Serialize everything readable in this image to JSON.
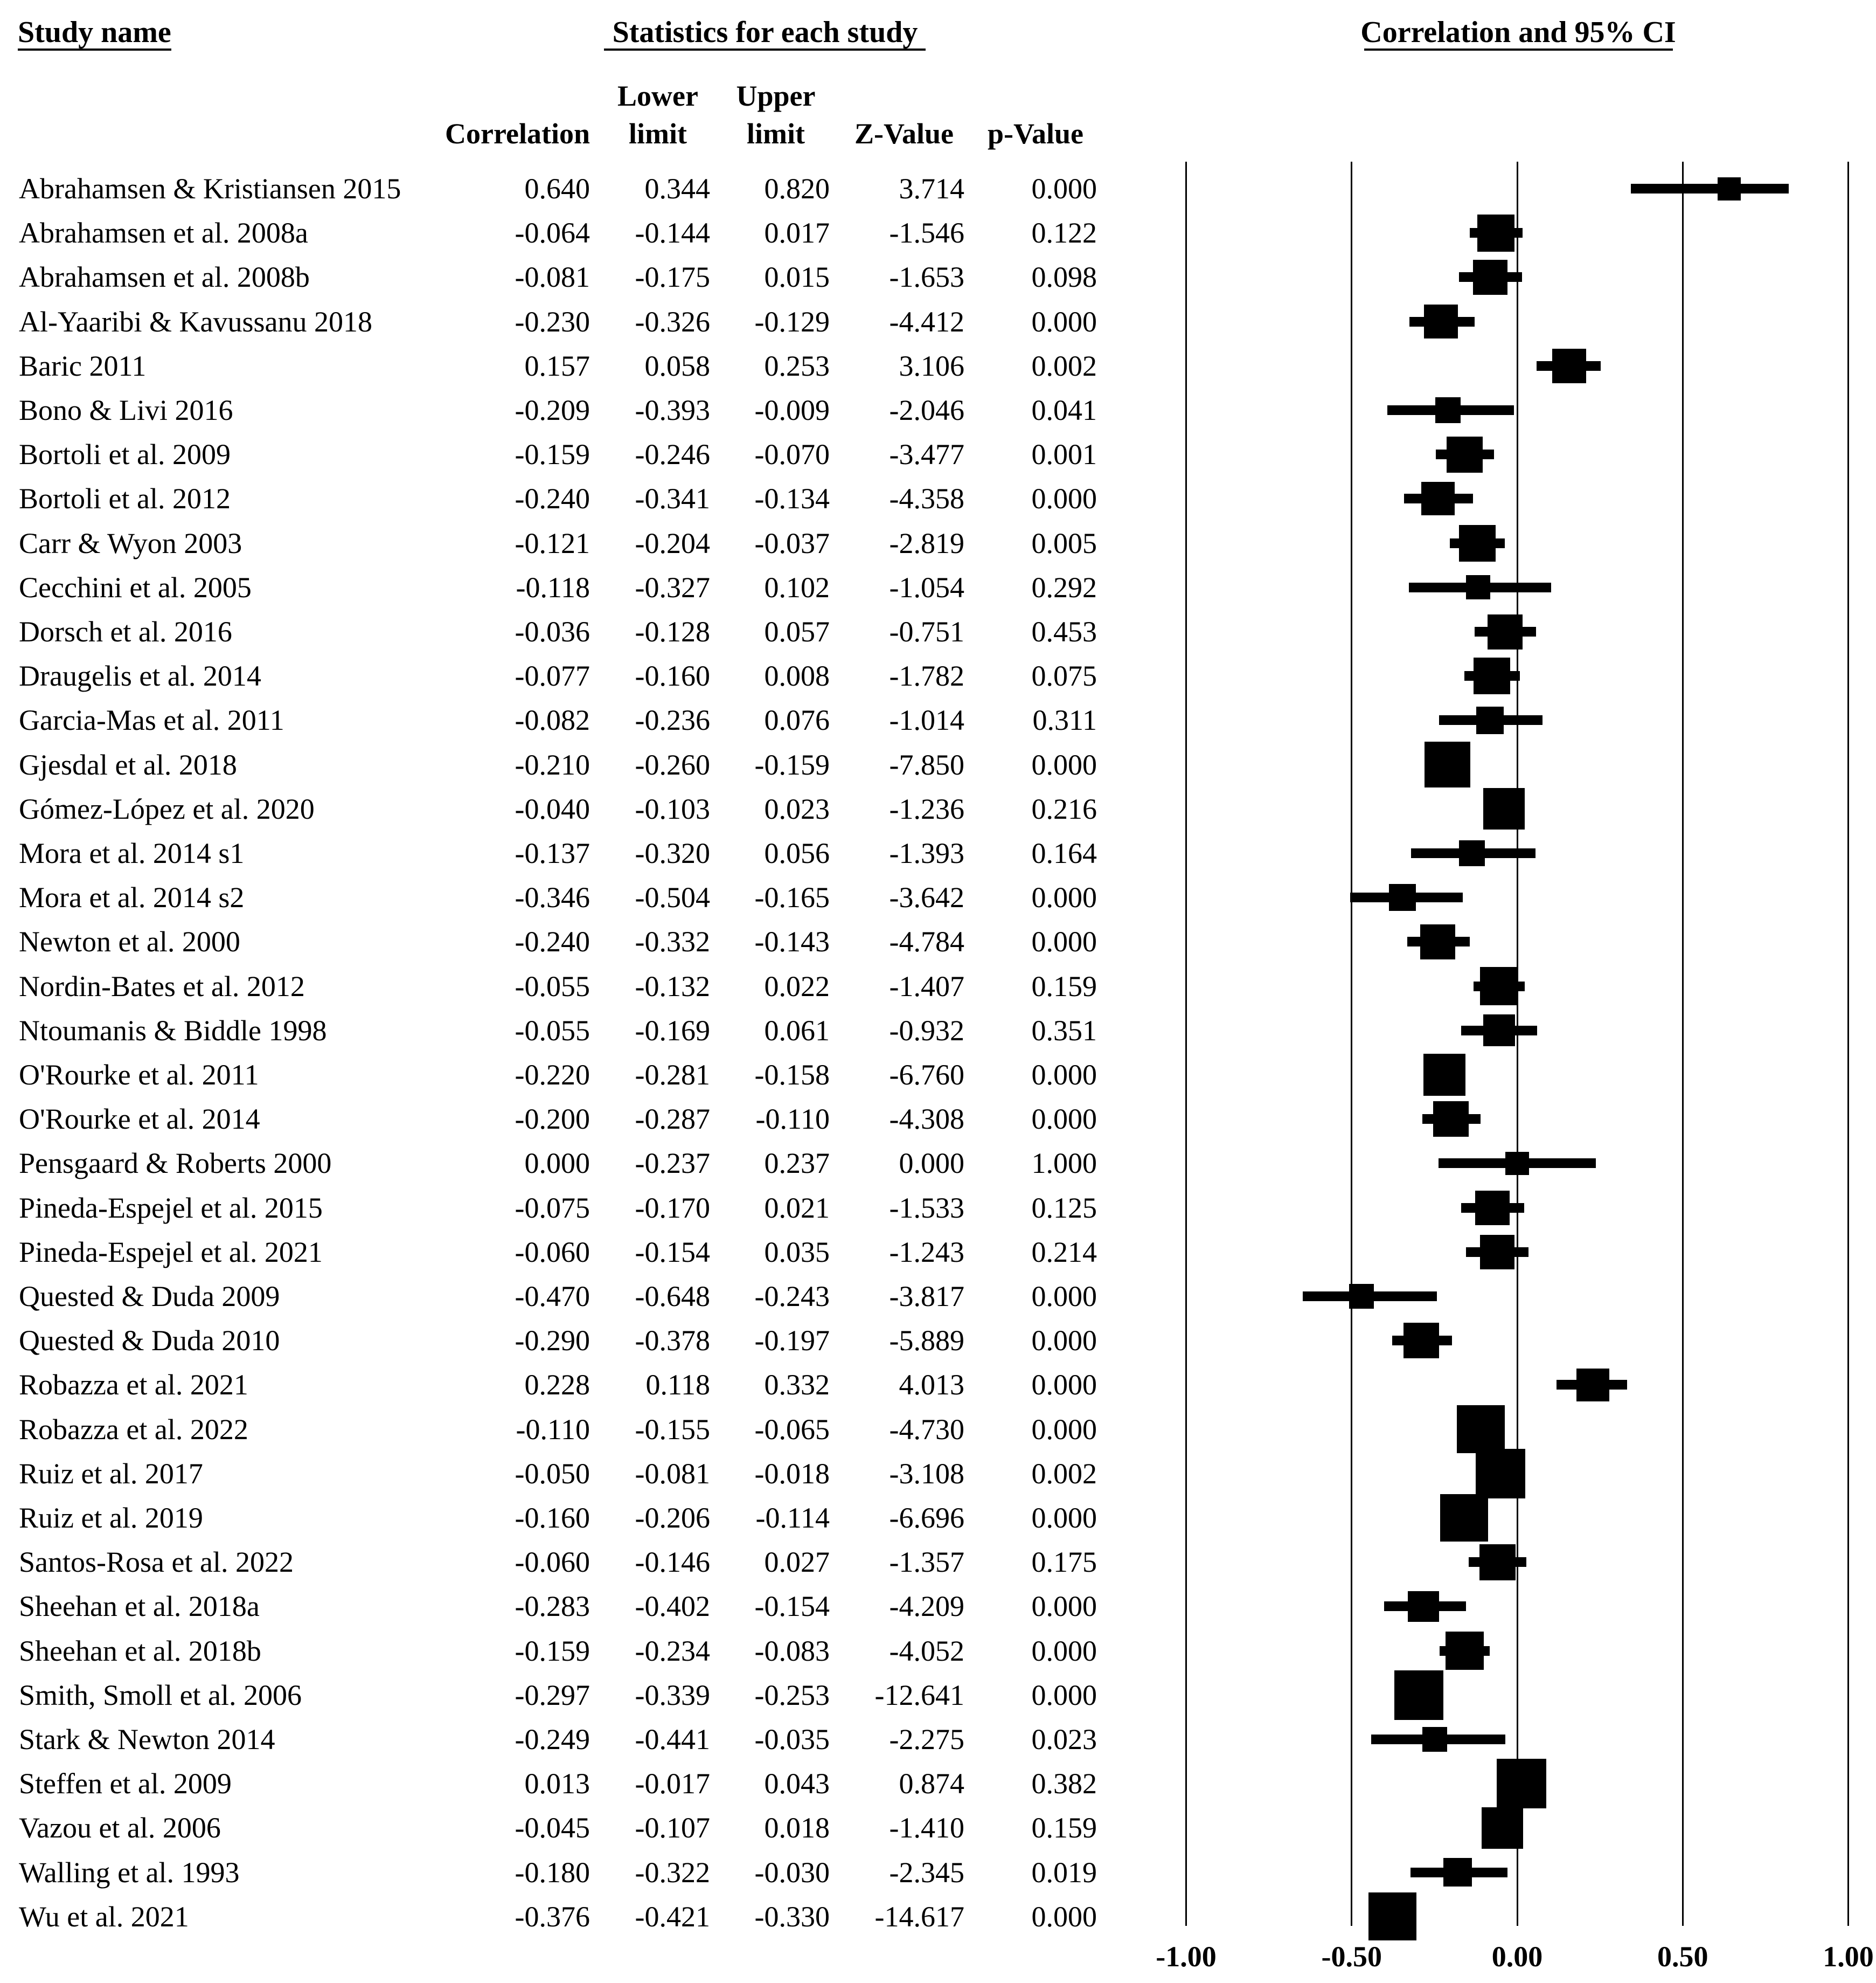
{
  "table": {
    "col1_header": "Study name",
    "group_header": "Statistics for each study",
    "plot_header": "Correlation and 95% CI",
    "subheaders": {
      "correlation": "Correlation",
      "lower_line1": "Lower",
      "lower_line2": "limit",
      "upper_line1": "Upper",
      "upper_line2": "limit",
      "z_value": "Z-Value",
      "p_value": "p-Value"
    }
  },
  "axis": {
    "tick_labels": [
      "-1.00",
      "-0.50",
      "0.00",
      "0.50",
      "1.00"
    ]
  },
  "colors": {
    "marker": "#000000",
    "text": "#000000",
    "background": "#ffffff"
  },
  "chart_data": {
    "type": "forest",
    "title": "Correlation and 95% CI",
    "xlabel": "Correlation",
    "xlim": [
      -1.0,
      1.0
    ],
    "xticks": [
      -1.0,
      -0.5,
      0.0,
      0.5,
      1.0
    ],
    "grid": "vertical-lines-at-ticks",
    "legend": "none",
    "columns": [
      "Correlation",
      "Lower limit",
      "Upper limit",
      "Z-Value",
      "p-Value"
    ],
    "studies": [
      {
        "name": "Abrahamsen & Kristiansen 2015",
        "correlation": "0.640",
        "lower": "0.344",
        "upper": "0.820",
        "z": "3.714",
        "p": "0.000"
      },
      {
        "name": "Abrahamsen et al. 2008a",
        "correlation": "-0.064",
        "lower": "-0.144",
        "upper": "0.017",
        "z": "-1.546",
        "p": "0.122"
      },
      {
        "name": "Abrahamsen et al. 2008b",
        "correlation": "-0.081",
        "lower": "-0.175",
        "upper": "0.015",
        "z": "-1.653",
        "p": "0.098"
      },
      {
        "name": "Al-Yaaribi & Kavussanu 2018",
        "correlation": "-0.230",
        "lower": "-0.326",
        "upper": "-0.129",
        "z": "-4.412",
        "p": "0.000"
      },
      {
        "name": "Baric 2011",
        "correlation": "0.157",
        "lower": "0.058",
        "upper": "0.253",
        "z": "3.106",
        "p": "0.002"
      },
      {
        "name": "Bono & Livi 2016",
        "correlation": "-0.209",
        "lower": "-0.393",
        "upper": "-0.009",
        "z": "-2.046",
        "p": "0.041"
      },
      {
        "name": "Bortoli et al. 2009",
        "correlation": "-0.159",
        "lower": "-0.246",
        "upper": "-0.070",
        "z": "-3.477",
        "p": "0.001"
      },
      {
        "name": "Bortoli et al. 2012",
        "correlation": "-0.240",
        "lower": "-0.341",
        "upper": "-0.134",
        "z": "-4.358",
        "p": "0.000"
      },
      {
        "name": "Carr & Wyon 2003",
        "correlation": "-0.121",
        "lower": "-0.204",
        "upper": "-0.037",
        "z": "-2.819",
        "p": "0.005"
      },
      {
        "name": "Cecchini et al. 2005",
        "correlation": "-0.118",
        "lower": "-0.327",
        "upper": "0.102",
        "z": "-1.054",
        "p": "0.292"
      },
      {
        "name": "Dorsch et al. 2016",
        "correlation": "-0.036",
        "lower": "-0.128",
        "upper": "0.057",
        "z": "-0.751",
        "p": "0.453"
      },
      {
        "name": "Draugelis et al. 2014",
        "correlation": "-0.077",
        "lower": "-0.160",
        "upper": "0.008",
        "z": "-1.782",
        "p": "0.075"
      },
      {
        "name": "Garcia-Mas et al. 2011",
        "correlation": "-0.082",
        "lower": "-0.236",
        "upper": "0.076",
        "z": "-1.014",
        "p": "0.311"
      },
      {
        "name": "Gjesdal et al. 2018",
        "correlation": "-0.210",
        "lower": "-0.260",
        "upper": "-0.159",
        "z": "-7.850",
        "p": "0.000"
      },
      {
        "name": "Gómez-López et al. 2020",
        "correlation": "-0.040",
        "lower": "-0.103",
        "upper": "0.023",
        "z": "-1.236",
        "p": "0.216"
      },
      {
        "name": "Mora et al. 2014 s1",
        "correlation": "-0.137",
        "lower": "-0.320",
        "upper": "0.056",
        "z": "-1.393",
        "p": "0.164"
      },
      {
        "name": "Mora et al. 2014 s2",
        "correlation": "-0.346",
        "lower": "-0.504",
        "upper": "-0.165",
        "z": "-3.642",
        "p": "0.000"
      },
      {
        "name": "Newton et al. 2000",
        "correlation": "-0.240",
        "lower": "-0.332",
        "upper": "-0.143",
        "z": "-4.784",
        "p": "0.000"
      },
      {
        "name": "Nordin-Bates et al. 2012",
        "correlation": "-0.055",
        "lower": "-0.132",
        "upper": "0.022",
        "z": "-1.407",
        "p": "0.159"
      },
      {
        "name": "Ntoumanis & Biddle 1998",
        "correlation": "-0.055",
        "lower": "-0.169",
        "upper": "0.061",
        "z": "-0.932",
        "p": "0.351"
      },
      {
        "name": "O'Rourke et al. 2011",
        "correlation": "-0.220",
        "lower": "-0.281",
        "upper": "-0.158",
        "z": "-6.760",
        "p": "0.000"
      },
      {
        "name": "O'Rourke et al. 2014",
        "correlation": "-0.200",
        "lower": "-0.287",
        "upper": "-0.110",
        "z": "-4.308",
        "p": "0.000"
      },
      {
        "name": "Pensgaard & Roberts 2000",
        "correlation": "0.000",
        "lower": "-0.237",
        "upper": "0.237",
        "z": "0.000",
        "p": "1.000"
      },
      {
        "name": "Pineda-Espejel et al. 2015",
        "correlation": "-0.075",
        "lower": "-0.170",
        "upper": "0.021",
        "z": "-1.533",
        "p": "0.125"
      },
      {
        "name": "Pineda-Espejel et al. 2021",
        "correlation": "-0.060",
        "lower": "-0.154",
        "upper": "0.035",
        "z": "-1.243",
        "p": "0.214"
      },
      {
        "name": "Quested & Duda 2009",
        "correlation": "-0.470",
        "lower": "-0.648",
        "upper": "-0.243",
        "z": "-3.817",
        "p": "0.000"
      },
      {
        "name": "Quested & Duda 2010",
        "correlation": "-0.290",
        "lower": "-0.378",
        "upper": "-0.197",
        "z": "-5.889",
        "p": "0.000"
      },
      {
        "name": "Robazza et al. 2021",
        "correlation": "0.228",
        "lower": "0.118",
        "upper": "0.332",
        "z": "4.013",
        "p": "0.000"
      },
      {
        "name": "Robazza et al. 2022",
        "correlation": "-0.110",
        "lower": "-0.155",
        "upper": "-0.065",
        "z": "-4.730",
        "p": "0.000"
      },
      {
        "name": "Ruiz et al. 2017",
        "correlation": "-0.050",
        "lower": "-0.081",
        "upper": "-0.018",
        "z": "-3.108",
        "p": "0.002"
      },
      {
        "name": "Ruiz et al. 2019",
        "correlation": "-0.160",
        "lower": "-0.206",
        "upper": "-0.114",
        "z": "-6.696",
        "p": "0.000"
      },
      {
        "name": "Santos-Rosa et al. 2022",
        "correlation": "-0.060",
        "lower": "-0.146",
        "upper": "0.027",
        "z": "-1.357",
        "p": "0.175"
      },
      {
        "name": "Sheehan et al. 2018a",
        "correlation": "-0.283",
        "lower": "-0.402",
        "upper": "-0.154",
        "z": "-4.209",
        "p": "0.000"
      },
      {
        "name": "Sheehan et al. 2018b",
        "correlation": "-0.159",
        "lower": "-0.234",
        "upper": "-0.083",
        "z": "-4.052",
        "p": "0.000"
      },
      {
        "name": "Smith, Smoll et al. 2006",
        "correlation": "-0.297",
        "lower": "-0.339",
        "upper": "-0.253",
        "z": "-12.641",
        "p": "0.000"
      },
      {
        "name": "Stark & Newton 2014",
        "correlation": "-0.249",
        "lower": "-0.441",
        "upper": "-0.035",
        "z": "-2.275",
        "p": "0.023"
      },
      {
        "name": "Steffen et al. 2009",
        "correlation": "0.013",
        "lower": "-0.017",
        "upper": "0.043",
        "z": "0.874",
        "p": "0.382"
      },
      {
        "name": "Vazou et al. 2006",
        "correlation": "-0.045",
        "lower": "-0.107",
        "upper": "0.018",
        "z": "-1.410",
        "p": "0.159"
      },
      {
        "name": "Walling et al. 1993",
        "correlation": "-0.180",
        "lower": "-0.322",
        "upper": "-0.030",
        "z": "-2.345",
        "p": "0.019"
      },
      {
        "name": "Wu et al. 2021",
        "correlation": "-0.376",
        "lower": "-0.421",
        "upper": "-0.330",
        "z": "-14.617",
        "p": "0.000"
      }
    ]
  }
}
